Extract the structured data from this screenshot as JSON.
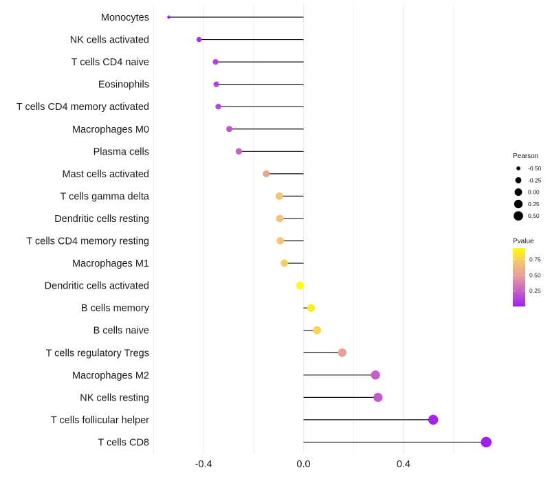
{
  "chart_data": {
    "type": "lollipop",
    "title": "",
    "xlabel": "",
    "ylabel": "",
    "xlim": [
      -0.6,
      0.75
    ],
    "x_major_ticks": [
      -0.4,
      0.0,
      0.4
    ],
    "x_tick_labels": [
      "-0.4",
      "0.0",
      "0.4"
    ],
    "x_minor_gridlines": [
      -0.6,
      -0.2,
      0.2,
      0.6
    ],
    "grid": true,
    "categories": [
      "Monocytes",
      "NK cells activated",
      "T cells CD4 naive",
      "Eosinophils",
      "T cells CD4 memory activated",
      "Macrophages M0",
      "Plasma cells",
      "Mast cells activated",
      "T cells gamma delta",
      "Dendritic cells resting",
      "T cells CD4 memory resting",
      "Macrophages M1",
      "Dendritic cells activated",
      "B cells memory",
      "B cells naive",
      "T cells regulatory  Tregs ",
      "Macrophages M2",
      "NK cells resting",
      "T cells follicular helper",
      "T cells CD8"
    ],
    "series": [
      {
        "name": "Pearson",
        "values": [
          -0.539,
          -0.418,
          -0.352,
          -0.349,
          -0.341,
          -0.297,
          -0.259,
          -0.149,
          -0.097,
          -0.095,
          -0.093,
          -0.077,
          -0.014,
          0.03,
          0.054,
          0.155,
          0.288,
          0.298,
          0.519,
          0.731
        ]
      },
      {
        "name": "Pvalue",
        "values": [
          0.02,
          0.07,
          0.13,
          0.14,
          0.15,
          0.2,
          0.26,
          0.53,
          0.68,
          0.69,
          0.7,
          0.74,
          0.93,
          0.86,
          0.76,
          0.51,
          0.24,
          0.22,
          0.02,
          0.0003
        ]
      }
    ],
    "legend": {
      "position": "right",
      "size": {
        "title": "Pearson",
        "breaks": [
          -0.5,
          -0.25,
          0.0,
          0.25,
          0.5
        ],
        "labels": [
          "-0.50",
          "-0.25",
          "0.00",
          "0.25",
          "0.50"
        ]
      },
      "color": {
        "title": "Pvalue",
        "range": [
          0.0,
          0.93
        ],
        "breaks": [
          0.25,
          0.5,
          0.75
        ],
        "labels": [
          "0.25",
          "0.50",
          "0.75"
        ],
        "low_color": "#A020F0",
        "high_color": "#FFFF00",
        "gradient_stops": [
          "#A020F0",
          "#C45CCB",
          "#E39AA0",
          "#F3C475",
          "#FFFF00"
        ]
      }
    },
    "segment_color": "#111111",
    "gridline_color": "#ebebeb"
  }
}
